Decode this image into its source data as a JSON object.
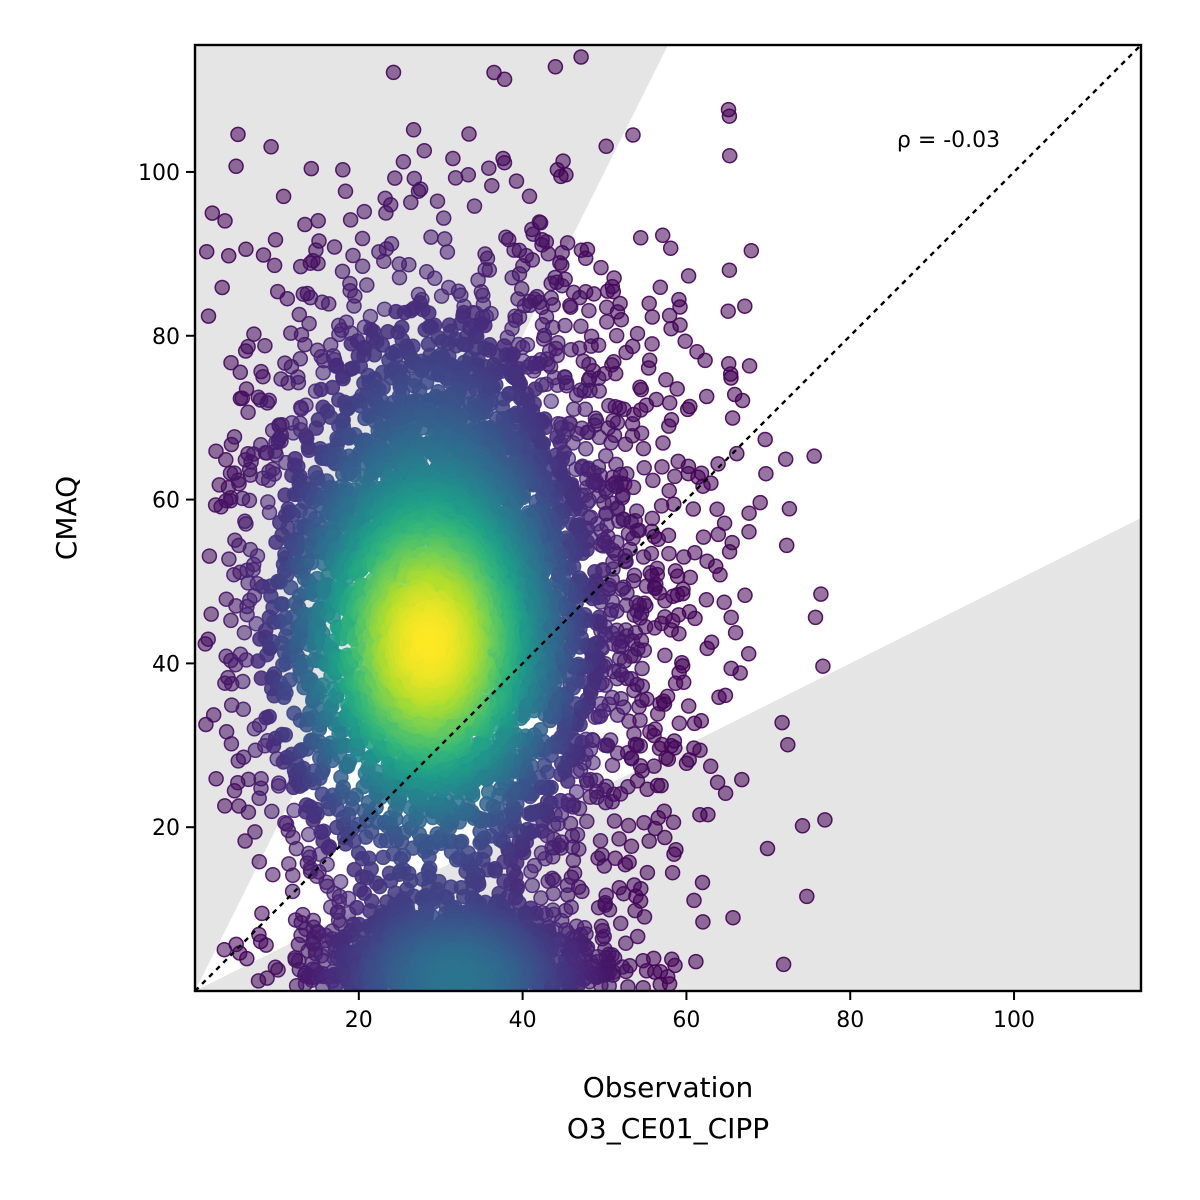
{
  "chart_data": {
    "type": "scatter",
    "title": "",
    "xlabel": "Observation",
    "xlabel_sub": "O3_CE01_CIPP",
    "ylabel": "CMAQ",
    "xlim": [
      0,
      115.5
    ],
    "ylim": [
      0,
      115.5
    ],
    "xticks": [
      20,
      40,
      60,
      80,
      100
    ],
    "yticks": [
      20,
      40,
      60,
      80,
      100
    ],
    "grid": false,
    "identity_line": true,
    "shaded_band_slopes": [
      0.5,
      2.0
    ],
    "colormap": "viridis",
    "annotation": {
      "text": "ρ = -0.03",
      "x": 92,
      "y": 104
    },
    "density_peak": {
      "x": 28.5,
      "y": 41.5
    },
    "point_count_approx": 6000,
    "colors": {
      "band": "#e5e5e5",
      "low_density": "#440154",
      "high_density": "#fde725"
    }
  }
}
